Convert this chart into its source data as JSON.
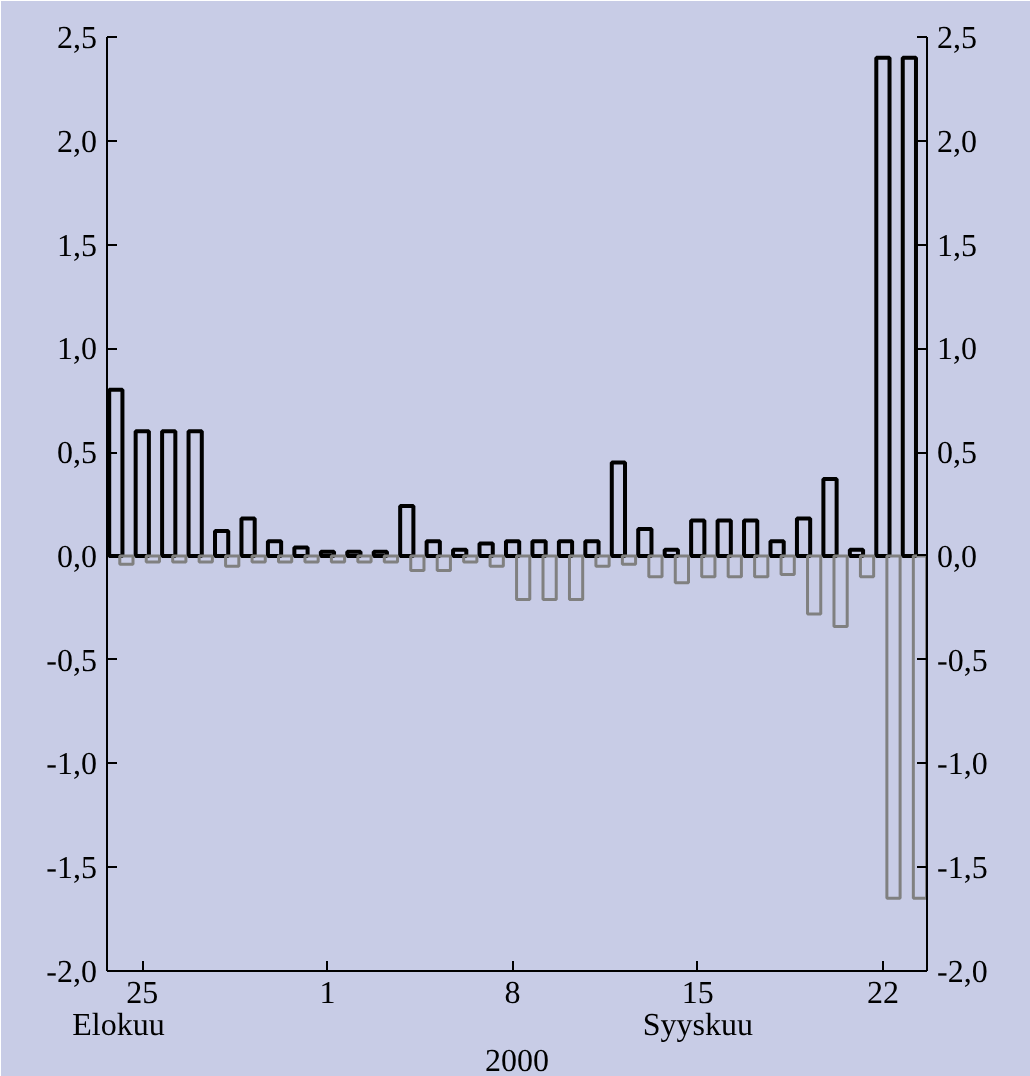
{
  "chart_data": {
    "type": "bar",
    "xlabel": "2000",
    "annotations": [
      "Elokuu",
      "Syyskuu"
    ],
    "x": [
      "2000-08-24",
      "2000-08-25",
      "2000-08-26",
      "2000-08-27",
      "2000-08-28",
      "2000-08-29",
      "2000-08-30",
      "2000-08-31",
      "2000-09-01",
      "2000-09-02",
      "2000-09-03",
      "2000-09-04",
      "2000-09-05",
      "2000-09-06",
      "2000-09-07",
      "2000-09-08",
      "2000-09-09",
      "2000-09-10",
      "2000-09-11",
      "2000-09-12",
      "2000-09-13",
      "2000-09-14",
      "2000-09-15",
      "2000-09-16",
      "2000-09-17",
      "2000-09-18",
      "2000-09-19",
      "2000-09-20",
      "2000-09-21",
      "2000-09-22",
      "2000-09-23"
    ],
    "series": [
      {
        "color": "#000000",
        "values": [
          0.8,
          0.6,
          0.6,
          0.6,
          0.12,
          0.18,
          0.07,
          0.04,
          0.02,
          0.02,
          0.02,
          0.24,
          0.07,
          0.03,
          0.06,
          0.07,
          0.07,
          0.07,
          0.07,
          0.45,
          0.13,
          0.03,
          0.17,
          0.17,
          0.17,
          0.07,
          0.18,
          0.37,
          0.03,
          2.4,
          2.4
        ]
      },
      {
        "color": "#808080",
        "values": [
          -0.04,
          -0.03,
          -0.03,
          -0.03,
          -0.05,
          -0.03,
          -0.03,
          -0.03,
          -0.03,
          -0.03,
          -0.03,
          -0.07,
          -0.07,
          -0.03,
          -0.05,
          -0.21,
          -0.21,
          -0.21,
          -0.05,
          -0.04,
          -0.1,
          -0.13,
          -0.1,
          -0.1,
          -0.1,
          -0.09,
          -0.28,
          -0.34,
          -0.1,
          -1.65,
          -1.65
        ]
      }
    ],
    "xlim": [
      "2000-08-23T16:00",
      "2000-09-23T16:00"
    ],
    "xticks": [
      {
        "value": "2000-08-25",
        "label": "25"
      },
      {
        "value": "2000-09-01",
        "label": "1"
      },
      {
        "value": "2000-09-08",
        "label": "8"
      },
      {
        "value": "2000-09-15",
        "label": "15"
      },
      {
        "value": "2000-09-22",
        "label": "22"
      }
    ],
    "ylim": [
      -2.0,
      2.5
    ],
    "yticks": [
      {
        "value": -2.0,
        "label": "-2,0"
      },
      {
        "value": -1.5,
        "label": "-1,5"
      },
      {
        "value": -1.0,
        "label": "-1,0"
      },
      {
        "value": -0.5,
        "label": "-0,5"
      },
      {
        "value": 0.0,
        "label": "0,0"
      },
      {
        "value": 0.5,
        "label": "0,5"
      },
      {
        "value": 1.0,
        "label": "1,0"
      },
      {
        "value": 1.5,
        "label": "1,5"
      },
      {
        "value": 2.0,
        "label": "2,0"
      },
      {
        "value": 2.5,
        "label": "2,5"
      }
    ],
    "y2lim": [
      -2.0,
      2.5
    ],
    "y2ticks": [
      {
        "value": -2.0,
        "label": "-2,0"
      },
      {
        "value": -1.5,
        "label": "-1,5"
      },
      {
        "value": -1.0,
        "label": "-1,0"
      },
      {
        "value": -0.5,
        "label": "-0,5"
      },
      {
        "value": 0.0,
        "label": "0,0"
      },
      {
        "value": 0.5,
        "label": "0,5"
      },
      {
        "value": 1.0,
        "label": "1,0"
      },
      {
        "value": 1.5,
        "label": "1,5"
      },
      {
        "value": 2.0,
        "label": "2,0"
      },
      {
        "value": 2.5,
        "label": "2,5"
      }
    ],
    "grid": false
  }
}
